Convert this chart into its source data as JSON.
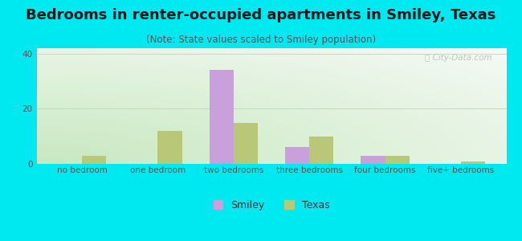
{
  "title": "Bedrooms in renter-occupied apartments in Smiley, Texas",
  "subtitle": "(Note: State values scaled to Smiley population)",
  "categories": [
    "no bedroom",
    "one bedroom",
    "two bedrooms",
    "three bedrooms",
    "four bedrooms",
    "five+ bedrooms"
  ],
  "smiley_values": [
    0,
    0,
    34,
    6,
    3,
    0
  ],
  "texas_values": [
    3,
    12,
    15,
    10,
    3,
    1
  ],
  "smiley_color": "#c9a0dc",
  "texas_color": "#b8c878",
  "background_outer": "#00e8f0",
  "bg_corner_bl": "#c8e8c0",
  "bg_corner_tr": "#f5faf5",
  "ylim": [
    0,
    42
  ],
  "yticks": [
    0,
    20,
    40
  ],
  "bar_width": 0.32,
  "grid_color": "#c8d8c0",
  "title_fontsize": 13,
  "subtitle_fontsize": 8.5,
  "tick_fontsize": 7.5,
  "legend_fontsize": 9
}
